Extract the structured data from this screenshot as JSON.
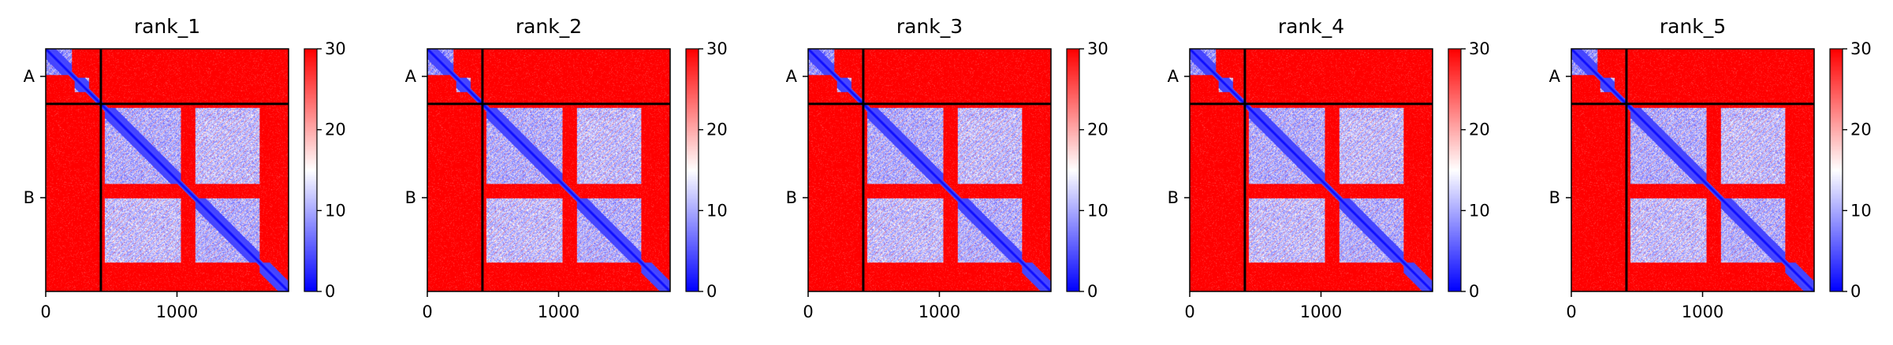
{
  "chart_data": {
    "type": "heatmap",
    "colormap": {
      "name": "bwr",
      "low_color": "#0000ff",
      "mid_color": "#ffffff",
      "high_color": "#ff0000",
      "vmin": 0,
      "vmax": 30
    },
    "colorbar_ticks": [
      "0",
      "10",
      "20",
      "30"
    ],
    "x_ticks": [
      0,
      1000
    ],
    "x_range": [
      0,
      1850
    ],
    "chain_labels": [
      "A",
      "B"
    ],
    "chain_boundary": 420,
    "total_length": 1850,
    "domains": [
      [
        0,
        200
      ],
      [
        220,
        330
      ],
      [
        450,
        1030
      ],
      [
        1140,
        1630
      ],
      [
        1630,
        1850
      ]
    ],
    "blocks": [
      {
        "r": [
          0,
          200
        ],
        "c": [
          0,
          200
        ],
        "level": 4
      },
      {
        "r": [
          220,
          330
        ],
        "c": [
          220,
          330
        ],
        "level": 8
      },
      {
        "r": [
          450,
          1030
        ],
        "c": [
          450,
          1030
        ],
        "level": 6
      },
      {
        "r": [
          1140,
          1630
        ],
        "c": [
          1140,
          1630
        ],
        "level": 6
      },
      {
        "r": [
          450,
          1030
        ],
        "c": [
          1140,
          1630
        ],
        "level": 7
      },
      {
        "r": [
          1140,
          1630
        ],
        "c": [
          450,
          1030
        ],
        "level": 7
      }
    ],
    "panels": [
      {
        "title": "rank_1"
      },
      {
        "title": "rank_2"
      },
      {
        "title": "rank_3"
      },
      {
        "title": "rank_4"
      },
      {
        "title": "rank_5"
      }
    ]
  }
}
